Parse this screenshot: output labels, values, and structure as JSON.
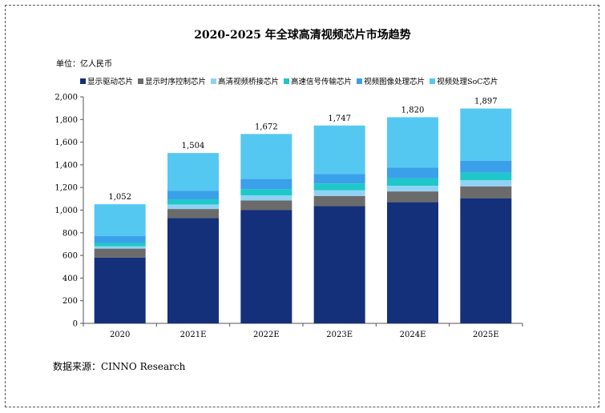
{
  "title": "2020-2025 年全球高清视频芯片市场趋势",
  "unit_label": "单位：亿人民币",
  "source": "数据来源：CINNO Research",
  "chart_data": {
    "type": "bar",
    "stacked": true,
    "title": "2020-2025 年全球高清视频芯片市场趋势",
    "ylabel": "单位：亿人民币",
    "xlabel": "",
    "ylim": [
      0,
      2000
    ],
    "yticks": [
      "0",
      "200",
      "400",
      "600",
      "800",
      "1,000",
      "1,200",
      "1,400",
      "1,600",
      "1,800",
      "2,000"
    ],
    "ytick_values": [
      0,
      200,
      400,
      600,
      800,
      1000,
      1200,
      1400,
      1600,
      1800,
      2000
    ],
    "categories": [
      "2020",
      "2021E",
      "2022E",
      "2023E",
      "2024E",
      "2025E"
    ],
    "totals": [
      "1,052",
      "1,504",
      "1,672",
      "1,747",
      "1,820",
      "1,897"
    ],
    "total_values": [
      1052,
      1504,
      1672,
      1747,
      1820,
      1897
    ],
    "legend_position": "top",
    "grid": false,
    "series": [
      {
        "name": "显示驱动芯片",
        "color": "#14307a",
        "values": [
          580,
          930,
          1000,
          1035,
          1070,
          1105
        ]
      },
      {
        "name": "显示时序控制芯片",
        "color": "#6b6b6b",
        "values": [
          80,
          80,
          85,
          90,
          95,
          105
        ]
      },
      {
        "name": "高清视频桥接芯片",
        "color": "#8fd3f4",
        "values": [
          20,
          40,
          45,
          50,
          50,
          55
        ]
      },
      {
        "name": "高速信号传输芯片",
        "color": "#1ec8c8",
        "values": [
          30,
          45,
          55,
          60,
          65,
          65
        ]
      },
      {
        "name": "视频图像处理芯片",
        "color": "#3aa0ea",
        "values": [
          60,
          75,
          90,
          85,
          95,
          105
        ]
      },
      {
        "name": "视频处理SoC芯片",
        "color": "#55c8f2",
        "values": [
          282,
          334,
          397,
          427,
          445,
          462
        ]
      }
    ]
  }
}
